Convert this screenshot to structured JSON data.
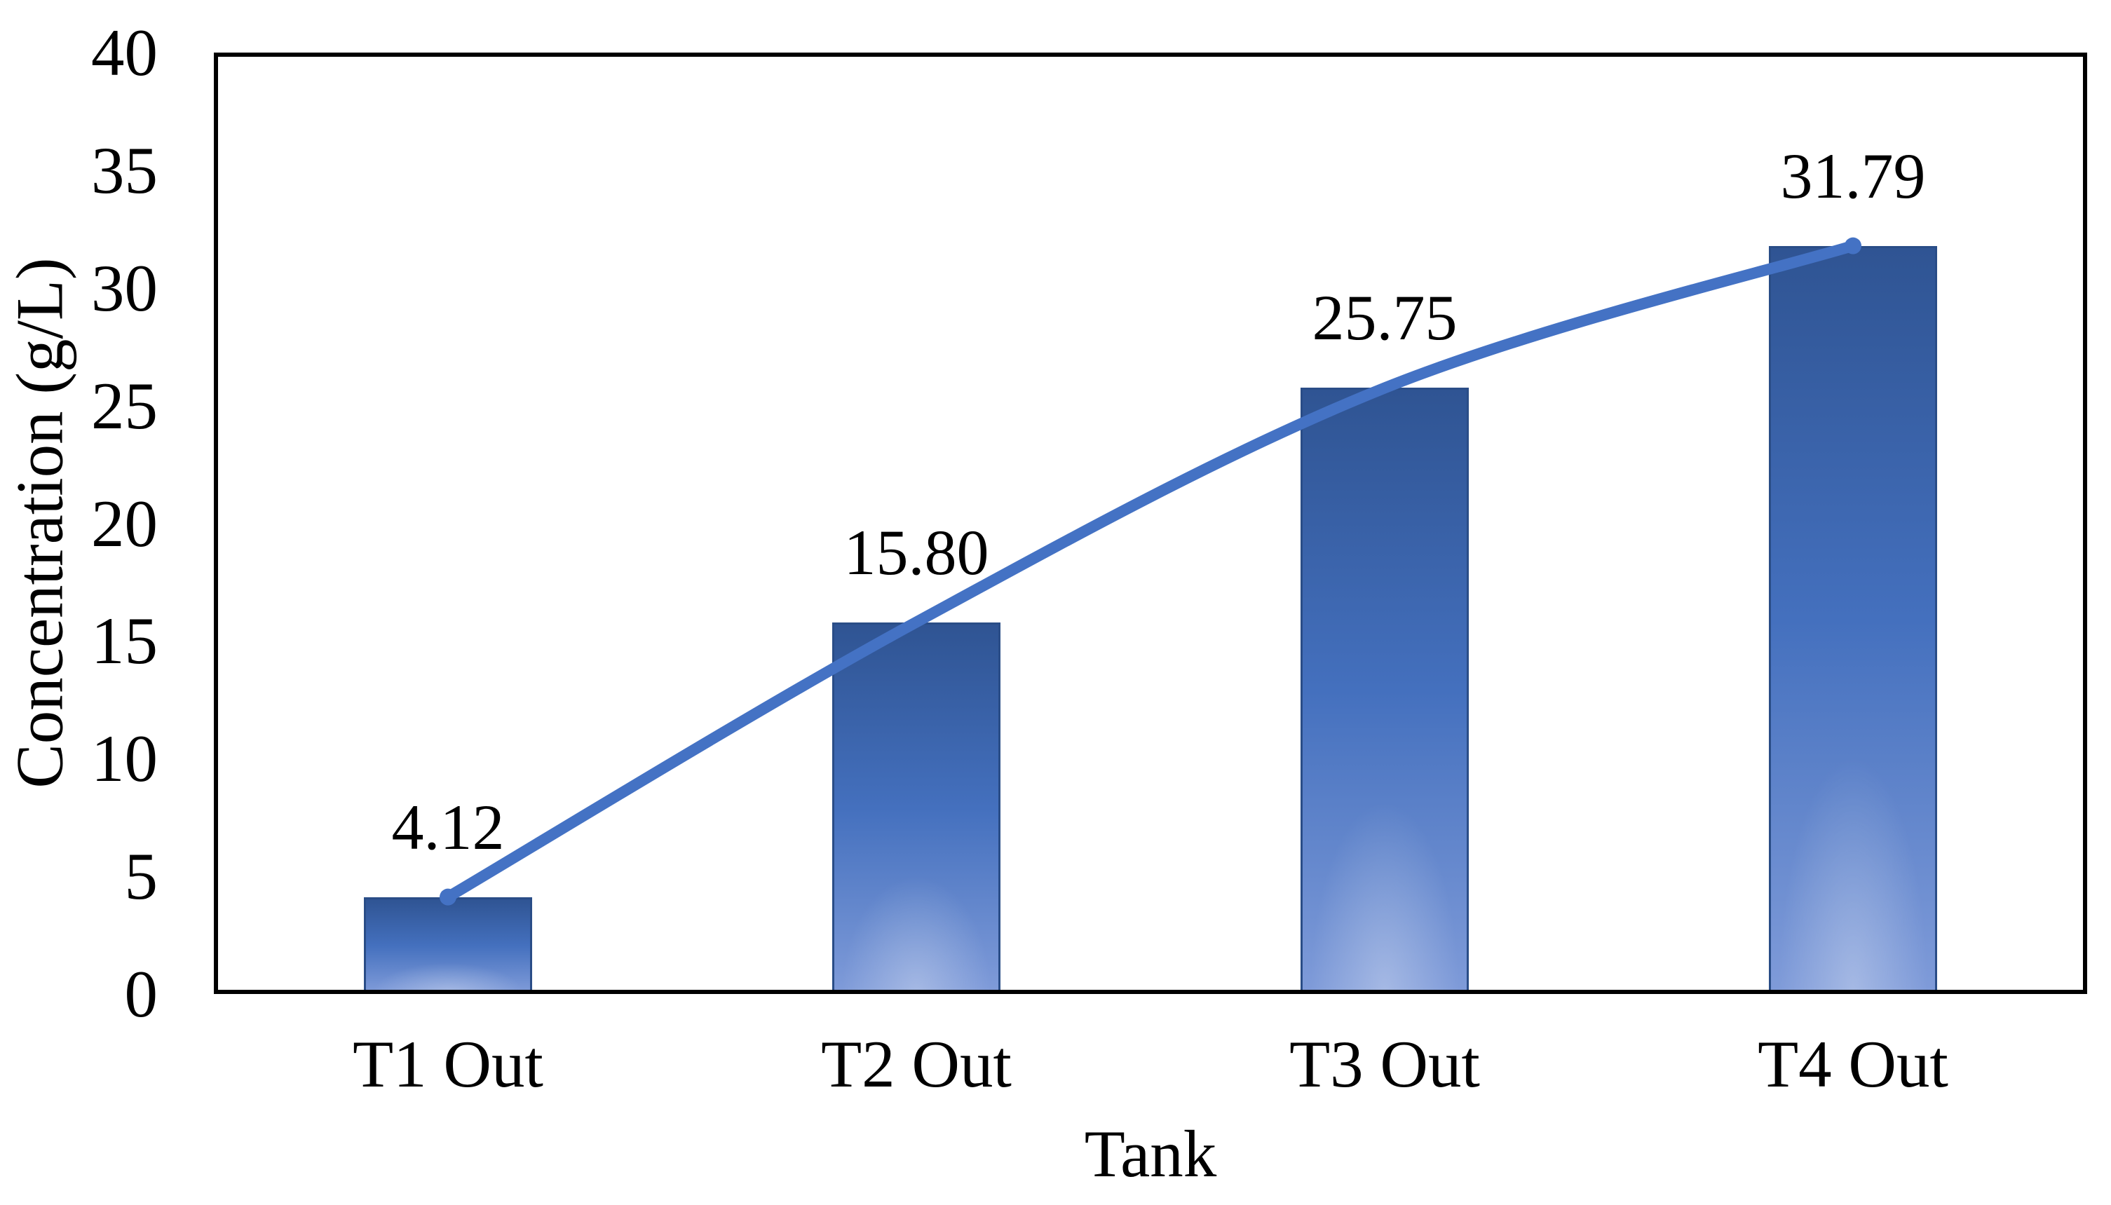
{
  "chart_data": {
    "type": "bar",
    "overlay": "smooth-line",
    "categories": [
      "T1 Out",
      "T2 Out",
      "T3 Out",
      "T4 Out"
    ],
    "values": [
      4.12,
      15.8,
      25.75,
      31.79
    ],
    "value_labels": [
      "4.12",
      "15.80",
      "25.75",
      "31.79"
    ],
    "line_series": {
      "name": "concentration-trend",
      "values": [
        4.12,
        15.8,
        25.75,
        31.79
      ]
    },
    "title": "",
    "xlabel": "Tank",
    "ylabel": "Concentration (g/L)",
    "ylim": [
      0,
      40
    ],
    "ytick_interval": 5,
    "yticks": [
      "0",
      "5",
      "10",
      "15",
      "20",
      "25",
      "30",
      "35",
      "40"
    ],
    "grid": false,
    "legend": null,
    "colors": {
      "line": "#4472C4",
      "bar_gradient_top": "#2F5493",
      "bar_gradient_mid": "#4470BE",
      "bar_gradient_bottom": "#7F9BD9",
      "bar_border": "#2A4D87",
      "axis": "#000000",
      "text": "#000000",
      "background": "#FFFFFF"
    }
  }
}
